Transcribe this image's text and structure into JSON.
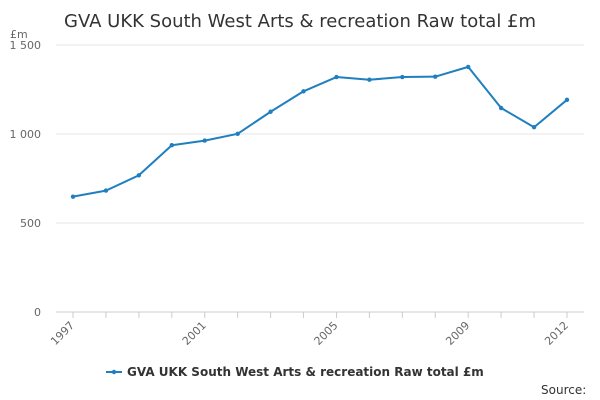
{
  "chart_data": {
    "type": "line",
    "title": "GVA UKK South West Arts & recreation Raw total £m",
    "unit_label": "£m",
    "x": [
      1997,
      1998,
      1999,
      2000,
      2001,
      2002,
      2003,
      2004,
      2005,
      2006,
      2007,
      2008,
      2009,
      2010,
      2011,
      2012
    ],
    "x_tick_labels": [
      "1997",
      "2001",
      "2005",
      "2009",
      "2012"
    ],
    "y_ticks": [
      0,
      500,
      1000,
      1500
    ],
    "y_tick_labels": [
      "0",
      "500",
      "1 000",
      "1 500"
    ],
    "ylim": [
      0,
      1500
    ],
    "grid": true,
    "legend_position": "bottom",
    "series": [
      {
        "name": "GVA UKK South West Arts & recreation Raw total £m",
        "color": "#1f7fbf",
        "values": [
          648,
          682,
          768,
          937,
          963,
          1001,
          1125,
          1240,
          1320,
          1305,
          1320,
          1322,
          1377,
          1146,
          1038,
          1192
        ]
      }
    ]
  },
  "footer": {
    "source_label": "Source:"
  }
}
